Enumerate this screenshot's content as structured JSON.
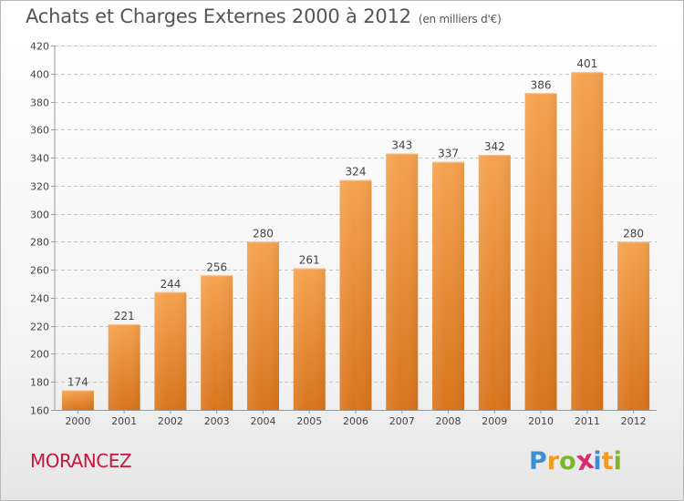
{
  "header": {
    "title": "Achats et Charges Externes 2000 à 2012",
    "subtitle": "(en milliers d'€)"
  },
  "commune": "MORANCEZ",
  "logo": {
    "letters": [
      "P",
      "r",
      "o",
      "x",
      "i",
      "t",
      "i"
    ],
    "colors": [
      "#3a8fd4",
      "#f29a1f",
      "#7ab829",
      "#d92b6b",
      "#3a8fd4",
      "#f29a1f",
      "#7ab829"
    ]
  },
  "colors": {
    "bar_top": "#f5a24e",
    "bar_bottom": "#d9741c",
    "grid": "#c8c8c8",
    "axis_text": "#444444"
  },
  "chart_data": {
    "type": "bar",
    "title": "Achats et Charges Externes 2000 à 2012",
    "ylabel": "",
    "xlabel": "",
    "categories": [
      "2000",
      "2001",
      "2002",
      "2003",
      "2004",
      "2005",
      "2006",
      "2007",
      "2008",
      "2009",
      "2010",
      "2011",
      "2012"
    ],
    "values": [
      174,
      221,
      244,
      256,
      280,
      261,
      324,
      343,
      337,
      342,
      386,
      401,
      280
    ],
    "ylim": [
      160,
      420
    ],
    "yticks": [
      160,
      180,
      200,
      220,
      240,
      260,
      280,
      300,
      320,
      340,
      360,
      380,
      400,
      420
    ],
    "grid": true
  }
}
